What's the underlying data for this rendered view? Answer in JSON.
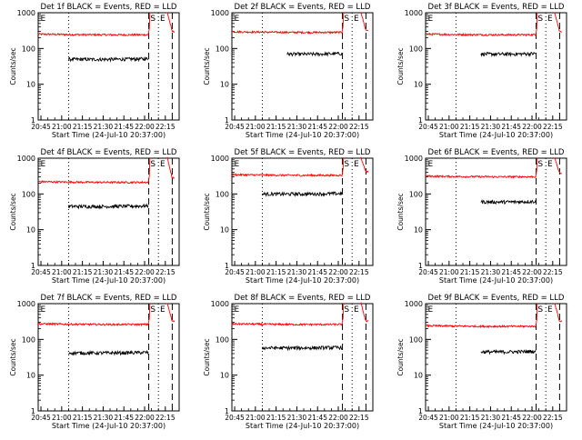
{
  "figure": {
    "x_tick_labels": [
      "20:45",
      "21:00",
      "21:15",
      "21:30",
      "21:45",
      "22:00",
      "22:15"
    ],
    "y_tick_labels": [
      "1",
      "10",
      "100",
      "1000"
    ],
    "ylabel": "Counts/sec",
    "xlabel": "Start Time (24-Jul-10 20:37:00)",
    "marker_labels": {
      "E_left": "E",
      "S": "S",
      "E_right": "E"
    },
    "colors": {
      "events": "#000000",
      "lld": "#ff0000",
      "axes": "#000000"
    }
  },
  "chart_data": [
    {
      "type": "line",
      "title": "Det 1f BLACK = Events, RED = LLD",
      "xlim_minutes": [
        -2,
        100
      ],
      "ylim": [
        1,
        1000
      ],
      "yscale": "log",
      "series": [
        {
          "values_desc": "black",
          "x_range": [
            20,
            78
          ],
          "level": 50
        },
        {
          "values_desc": "red",
          "pre_level": 240,
          "peak": 1000,
          "tail": 300
        }
      ],
      "lines": {
        "dotted": [
          20,
          85
        ],
        "dashed": [
          78,
          95
        ]
      }
    },
    {
      "type": "line",
      "title": "Det 2f BLACK = Events, RED = LLD",
      "xlim_minutes": [
        -2,
        100
      ],
      "ylim": [
        1,
        1000
      ],
      "yscale": "log",
      "series": [
        {
          "values_desc": "black",
          "x_range": [
            38,
            78
          ],
          "level": 70
        },
        {
          "values_desc": "red",
          "pre_level": 280,
          "peak": 1000,
          "tail": 320
        }
      ],
      "lines": {
        "dotted": [
          20,
          85
        ],
        "dashed": [
          78,
          95
        ]
      }
    },
    {
      "type": "line",
      "title": "Det 3f BLACK = Events, RED = LLD",
      "xlim_minutes": [
        -2,
        100
      ],
      "ylim": [
        1,
        1000
      ],
      "yscale": "log",
      "series": [
        {
          "values_desc": "black",
          "x_range": [
            38,
            78
          ],
          "level": 70
        },
        {
          "values_desc": "red",
          "pre_level": 240,
          "peak": 1000,
          "tail": 300
        }
      ],
      "lines": {
        "dotted": [
          20,
          85
        ],
        "dashed": [
          78,
          95
        ]
      }
    },
    {
      "type": "line",
      "title": "Det 4f BLACK = Events, RED = LLD",
      "xlim_minutes": [
        -2,
        100
      ],
      "ylim": [
        1,
        1000
      ],
      "yscale": "log",
      "series": [
        {
          "values_desc": "black",
          "x_range": [
            20,
            78
          ],
          "level": 45
        },
        {
          "values_desc": "red",
          "pre_level": 210,
          "peak": 1000,
          "tail": 280
        }
      ],
      "lines": {
        "dotted": [
          20,
          85
        ],
        "dashed": [
          78,
          95
        ]
      }
    },
    {
      "type": "line",
      "title": "Det 5f BLACK = Events, RED = LLD",
      "xlim_minutes": [
        -2,
        100
      ],
      "ylim": [
        1,
        1000
      ],
      "yscale": "log",
      "series": [
        {
          "values_desc": "black",
          "x_range": [
            20,
            78
          ],
          "level": 100
        },
        {
          "values_desc": "red",
          "pre_level": 330,
          "peak": 1000,
          "tail": 420
        }
      ],
      "lines": {
        "dotted": [
          20,
          85
        ],
        "dashed": [
          78,
          95
        ]
      }
    },
    {
      "type": "line",
      "title": "Det 6f BLACK = Events, RED = LLD",
      "xlim_minutes": [
        -2,
        100
      ],
      "ylim": [
        1,
        1000
      ],
      "yscale": "log",
      "series": [
        {
          "values_desc": "black",
          "x_range": [
            38,
            78
          ],
          "level": 60
        },
        {
          "values_desc": "red",
          "pre_level": 300,
          "peak": 1000,
          "tail": 380
        }
      ],
      "lines": {
        "dotted": [
          20,
          85
        ],
        "dashed": [
          78,
          95
        ]
      }
    },
    {
      "type": "line",
      "title": "Det 7f BLACK = Events, RED = LLD",
      "xlim_minutes": [
        -2,
        100
      ],
      "ylim": [
        1,
        1000
      ],
      "yscale": "log",
      "series": [
        {
          "values_desc": "black",
          "x_range": [
            20,
            78
          ],
          "level": 42
        },
        {
          "values_desc": "red",
          "pre_level": 260,
          "peak": 1000,
          "tail": 320
        }
      ],
      "lines": {
        "dotted": [
          20,
          85
        ],
        "dashed": [
          78,
          95
        ]
      }
    },
    {
      "type": "line",
      "title": "Det 8f BLACK = Events, RED = LLD",
      "xlim_minutes": [
        -2,
        100
      ],
      "ylim": [
        1,
        1000
      ],
      "yscale": "log",
      "series": [
        {
          "values_desc": "black",
          "x_range": [
            20,
            78
          ],
          "level": 58
        },
        {
          "values_desc": "red",
          "pre_level": 260,
          "peak": 1000,
          "tail": 320
        }
      ],
      "lines": {
        "dotted": [
          20,
          85
        ],
        "dashed": [
          78,
          95
        ]
      }
    },
    {
      "type": "line",
      "title": "Det 9f BLACK = Events, RED = LLD",
      "xlim_minutes": [
        -2,
        100
      ],
      "ylim": [
        1,
        1000
      ],
      "yscale": "log",
      "series": [
        {
          "values_desc": "black",
          "x_range": [
            38,
            78
          ],
          "level": 45
        },
        {
          "values_desc": "red",
          "pre_level": 230,
          "peak": 1000,
          "tail": 320
        }
      ],
      "lines": {
        "dotted": [
          20,
          85
        ],
        "dashed": [
          78,
          95
        ]
      }
    }
  ]
}
